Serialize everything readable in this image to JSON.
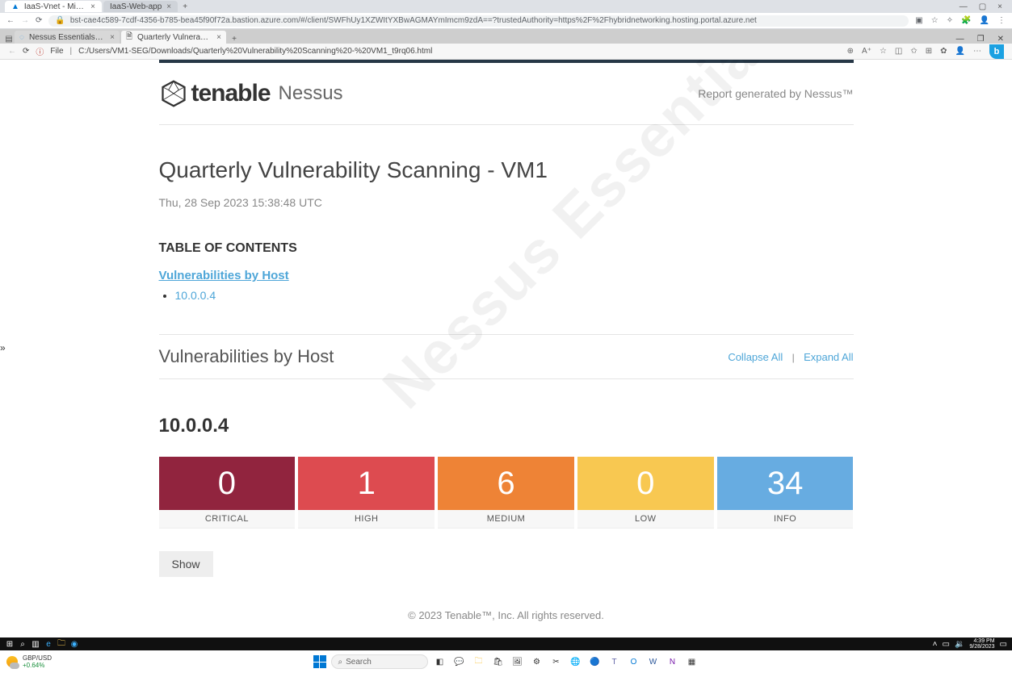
{
  "chrome": {
    "tabs": [
      {
        "title": "IaaS-Vnet - Microsoft Azure",
        "favicon": "▲"
      },
      {
        "title": "IaaS-Web-app",
        "favicon": "○"
      }
    ],
    "url": "bst-cae4c589-7cdf-4356-b785-bea45f90f72a.bastion.azure.com/#/client/SWFhUy1XZWItYXBwAGMAYmImcm9zdA==?trustedAuthority=https%2F%2Fhybridnetworking.hosting.portal.azure.net"
  },
  "edge": {
    "tabs": [
      {
        "title": "Nessus Essentials / Folders / Vie",
        "active": false
      },
      {
        "title": "Quarterly Vulnerability Scanning",
        "active": true
      }
    ],
    "file_label": "File",
    "url": "C:/Users/VM1-SEG/Downloads/Quarterly%20Vulnerability%20Scanning%20-%20VM1_t9rq06.html",
    "search_placeholder": "Search"
  },
  "report": {
    "logo_brand": "tenable",
    "logo_product": "Nessus",
    "generated_by": "Report generated by Nessus™",
    "title": "Quarterly Vulnerability Scanning - VM1",
    "timestamp": "Thu, 28 Sep 2023 15:38:48 UTC",
    "toc_heading": "TABLE OF CONTENTS",
    "toc_section": "Vulnerabilities by Host",
    "toc_items": [
      "10.0.0.4"
    ],
    "section_heading": "Vulnerabilities by Host",
    "collapse_label": "Collapse All",
    "expand_label": "Expand All",
    "host_ip": "10.0.0.4",
    "severities": [
      {
        "count": 0,
        "label": "CRITICAL",
        "color": "#91243e"
      },
      {
        "count": 1,
        "label": "HIGH",
        "color": "#dd4b50"
      },
      {
        "count": 6,
        "label": "MEDIUM",
        "color": "#ee8336"
      },
      {
        "count": 0,
        "label": "LOW",
        "color": "#f8c851"
      },
      {
        "count": 34,
        "label": "INFO",
        "color": "#67ace1"
      }
    ],
    "ui_colors": {
      "link": "#4ea6d8",
      "text_muted": "#888888",
      "card_bg": "#f7f7f7"
    },
    "show_button": "Show",
    "watermark": "Nessus Essentials",
    "footer": "© 2023 Tenable™, Inc. All rights reserved."
  },
  "taskbar": {
    "weather_pair": "GBP/USD",
    "weather_change": "+0.64%",
    "time": "4:39 PM",
    "date": "9/28/2023"
  }
}
